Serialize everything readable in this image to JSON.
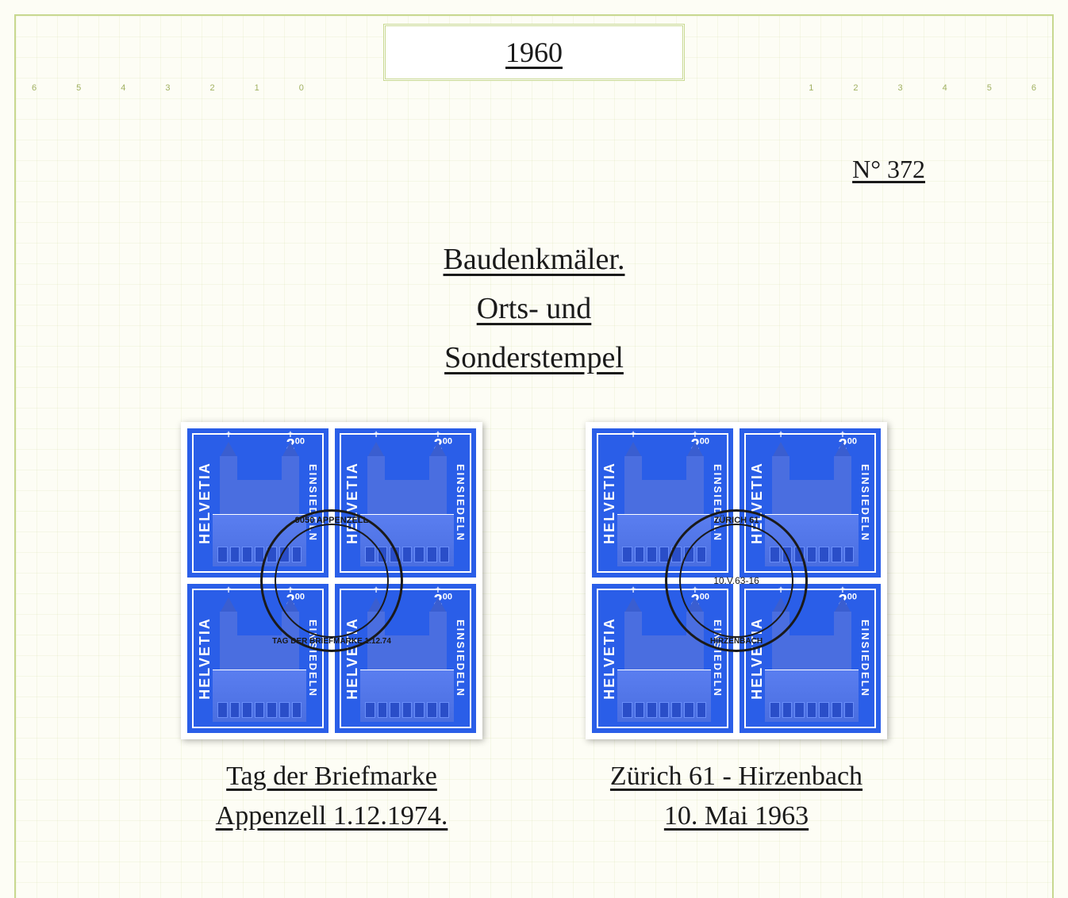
{
  "header": {
    "year": "1960"
  },
  "catalog": {
    "number": "N° 372"
  },
  "titles": {
    "line1": "Baudenkmäler.",
    "line2": "Orts- und",
    "line3": "Sonderstempel"
  },
  "stamp": {
    "country": "HELVETIA",
    "location": "EINSIEDELN",
    "value_main": "2",
    "value_sup": "00",
    "color_background": "#2a5ee8",
    "color_ink": "#ffffff"
  },
  "postmarks": {
    "left": {
      "top_text": "9050 APPENZELL",
      "bottom_text": "TAG DER BRIEFMARKE 1.12.74",
      "center_text": ""
    },
    "right": {
      "top_text": "ZÜRICH 61",
      "bottom_text": "HIRZENBACH",
      "center_text": "10.V.63-16"
    }
  },
  "captions": {
    "left": {
      "line1": "Tag der Briefmarke",
      "line2": "Appenzell 1.12.1974."
    },
    "right": {
      "line1": "Zürich 61 - Hirzenbach",
      "line2": "10. Mai 1963"
    }
  },
  "ruler": {
    "left_marks": [
      "6",
      "5",
      "4",
      "3",
      "2",
      "1",
      "0"
    ],
    "right_marks": [
      "1",
      "2",
      "3",
      "4",
      "5",
      "6"
    ]
  },
  "styling": {
    "page_bg": "#fdfdf5",
    "border_color": "#c8d890",
    "grid_color": "rgba(200, 216, 144, 0.15)",
    "text_color": "#1a1a1a",
    "handwriting_font": "Brush Script MT",
    "stamp_shadow": "2px 2px 8px rgba(0,0,0,0.3)"
  }
}
